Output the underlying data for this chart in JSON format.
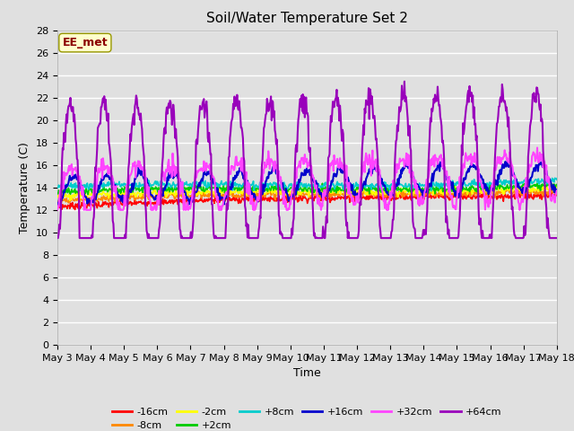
{
  "title": "Soil/Water Temperature Set 2",
  "xlabel": "Time",
  "ylabel": "Temperature (C)",
  "ylim": [
    0,
    28
  ],
  "yticks": [
    0,
    2,
    4,
    6,
    8,
    10,
    12,
    14,
    16,
    18,
    20,
    22,
    24,
    26,
    28
  ],
  "x_labels": [
    "May 3",
    "May 4",
    "May 5",
    "May 6",
    "May 7",
    "May 8",
    "May 9",
    "May 10",
    "May 11",
    "May 12",
    "May 13",
    "May 14",
    "May 15",
    "May 16",
    "May 17",
    "May 18"
  ],
  "annotation_text": "EE_met",
  "annotation_color": "#8B0000",
  "annotation_bg": "#FFFFCC",
  "bg_color": "#E0E0E0",
  "series": {
    "-16cm": {
      "color": "#FF0000",
      "lw": 1.2
    },
    "-8cm": {
      "color": "#FF8800",
      "lw": 1.2
    },
    "-2cm": {
      "color": "#FFFF00",
      "lw": 1.2
    },
    "+2cm": {
      "color": "#00CC00",
      "lw": 1.2
    },
    "+8cm": {
      "color": "#00CCCC",
      "lw": 1.2
    },
    "+16cm": {
      "color": "#0000CC",
      "lw": 1.5
    },
    "+32cm": {
      "color": "#FF44FF",
      "lw": 1.5
    },
    "+64cm": {
      "color": "#9900BB",
      "lw": 1.5
    }
  },
  "grid_color": "#FFFFFF",
  "font_size_ticks": 8,
  "font_size_title": 11,
  "font_size_labels": 9,
  "font_size_legend": 8,
  "font_size_annotation": 9
}
